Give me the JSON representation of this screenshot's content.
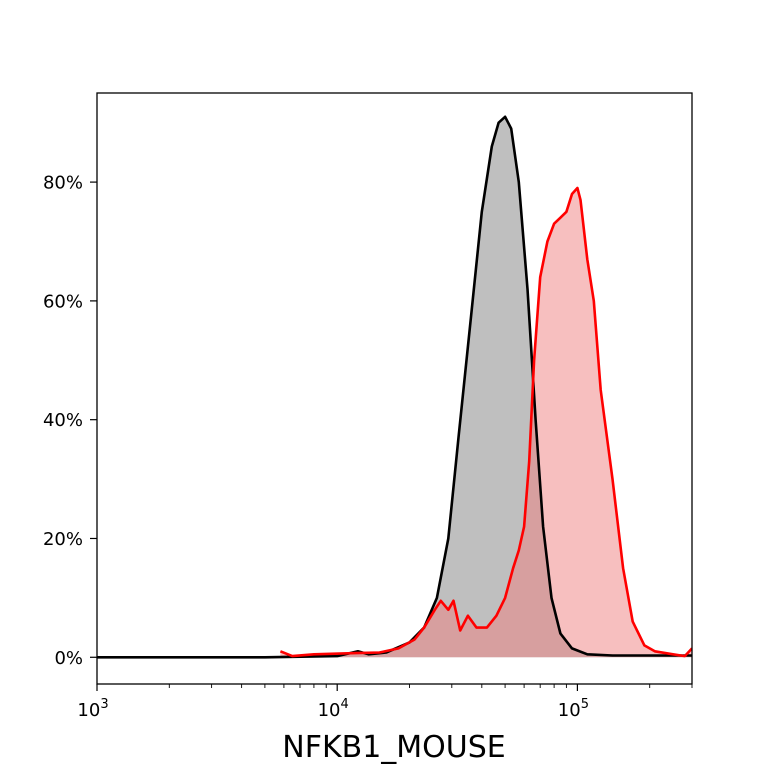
{
  "chart_data": {
    "type": "area",
    "title": "",
    "xlabel": "NFKB1_MOUSE",
    "ylabel": "",
    "x_scale": "log",
    "xlim": [
      1000,
      300000
    ],
    "ylim": [
      -4.5,
      95
    ],
    "x_ticks": [
      {
        "value": 1000,
        "base": "10",
        "exp": "3"
      },
      {
        "value": 10000,
        "base": "10",
        "exp": "4"
      },
      {
        "value": 100000,
        "base": "10",
        "exp": "5"
      }
    ],
    "y_ticks": [
      {
        "value": 0,
        "label": "0%"
      },
      {
        "value": 20,
        "label": "20%"
      },
      {
        "value": 40,
        "label": "40%"
      },
      {
        "value": 60,
        "label": "60%"
      },
      {
        "value": 80,
        "label": "80%"
      }
    ],
    "grid": false,
    "legend": "none",
    "series": [
      {
        "color": "#808080",
        "line_color": "#000000",
        "x": [
          1000,
          5000,
          10000,
          12200,
          13500,
          16000,
          20000,
          23000,
          26000,
          29000,
          32000,
          36000,
          40000,
          44000,
          47000,
          50000,
          53000,
          57000,
          62000,
          67000,
          72000,
          78000,
          85000,
          95000,
          110000,
          140000,
          200000,
          300000
        ],
        "y": [
          0,
          0,
          0.2,
          1.0,
          0.5,
          0.8,
          2.5,
          5,
          10,
          20,
          37,
          57,
          75,
          86,
          90,
          91,
          89,
          80,
          62,
          40,
          22,
          10,
          4,
          1.5,
          0.5,
          0.3,
          0.3,
          0.3
        ]
      },
      {
        "color": "#f08080",
        "line_color": "#ff0000",
        "x": [
          5800,
          6500,
          8000,
          12000,
          15000,
          18000,
          21000,
          23000,
          25500,
          27000,
          29000,
          30500,
          32500,
          35000,
          38000,
          42000,
          46000,
          50000,
          54000,
          57000,
          60000,
          63000,
          66000,
          70000,
          75000,
          80000,
          85000,
          90000,
          95000,
          100000,
          103000,
          110000,
          117000,
          125000,
          140000,
          155000,
          170000,
          190000,
          210000,
          250000,
          280000,
          300000
        ],
        "y": [
          1,
          0.2,
          0.5,
          0.7,
          0.8,
          1.5,
          3,
          5,
          8,
          9.5,
          8,
          9.5,
          4.5,
          7,
          5,
          5,
          7,
          10,
          15,
          18,
          22,
          33,
          50,
          64,
          70,
          73,
          74,
          75,
          78,
          79,
          77,
          67,
          60,
          45,
          30,
          15,
          6,
          2,
          1,
          0.5,
          0.2,
          1.5
        ]
      }
    ]
  }
}
